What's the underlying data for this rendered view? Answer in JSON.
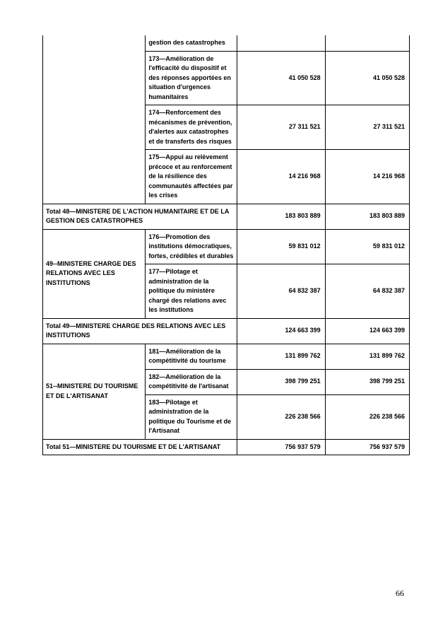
{
  "page_number": "66",
  "rows": {
    "r0_desc": "gestion des catastrophes",
    "r1_desc": "173—Amélioration de l'efficacité du dispositif et des réponses apportées en situation d'urgences humanitaires",
    "r1_v1": "41 050 528",
    "r1_v2": "41 050 528",
    "r2_desc": "174—Renforcement des mécanismes de prévention, d'alertes aux catastrophes et de transferts des risques",
    "r2_v1": "27 311 521",
    "r2_v2": "27 311 521",
    "r3_desc": "175—Appui au relèvement précoce et au renforcement de la résilience des communautés affectées par les crises",
    "r3_v1": "14 216 968",
    "r3_v2": "14 216 968",
    "total48_label": "Total 48—MINISTERE DE L'ACTION HUMANITAIRE ET DE LA GESTION DES CATASTROPHES",
    "total48_v1": "183 803 889",
    "total48_v2": "183 803 889",
    "min49_label": "49--MINISTERE CHARGE DES RELATIONS AVEC LES INSTITUTIONS",
    "r4_desc": "176—Promotion des institutions démocratiques, fortes, crédibles et durables",
    "r4_v1": "59 831 012",
    "r4_v2": "59 831 012",
    "r5_desc": "177—Pilotage et administration de la politique du ministère chargé des relations avec les institutions",
    "r5_v1": "64 832 387",
    "r5_v2": "64 832 387",
    "total49_label": "Total 49—MINISTERE CHARGE DES RELATIONS AVEC LES INSTITUTIONS",
    "total49_v1": "124 663 399",
    "total49_v2": "124 663 399",
    "min51_label": "51--MINISTERE DU TOURISME ET DE L'ARTISANAT",
    "r6_desc": "181—Amélioration de la compétitivité du tourisme",
    "r6_v1": "131 899 762",
    "r6_v2": "131 899 762",
    "r7_desc": "182—Amélioration de la compétitivité de l'artisanat",
    "r7_v1": "398 799 251",
    "r7_v2": "398 799 251",
    "r8_desc": "183—Pilotage et administration de la politique du Tourisme et de l'Artisanat",
    "r8_v1": "226 238 566",
    "r8_v2": "226 238 566",
    "total51_label": "Total 51—MINISTERE DU TOURISME ET DE L'ARTISANAT",
    "total51_v1": "756 937 579",
    "total51_v2": "756 937 579"
  }
}
